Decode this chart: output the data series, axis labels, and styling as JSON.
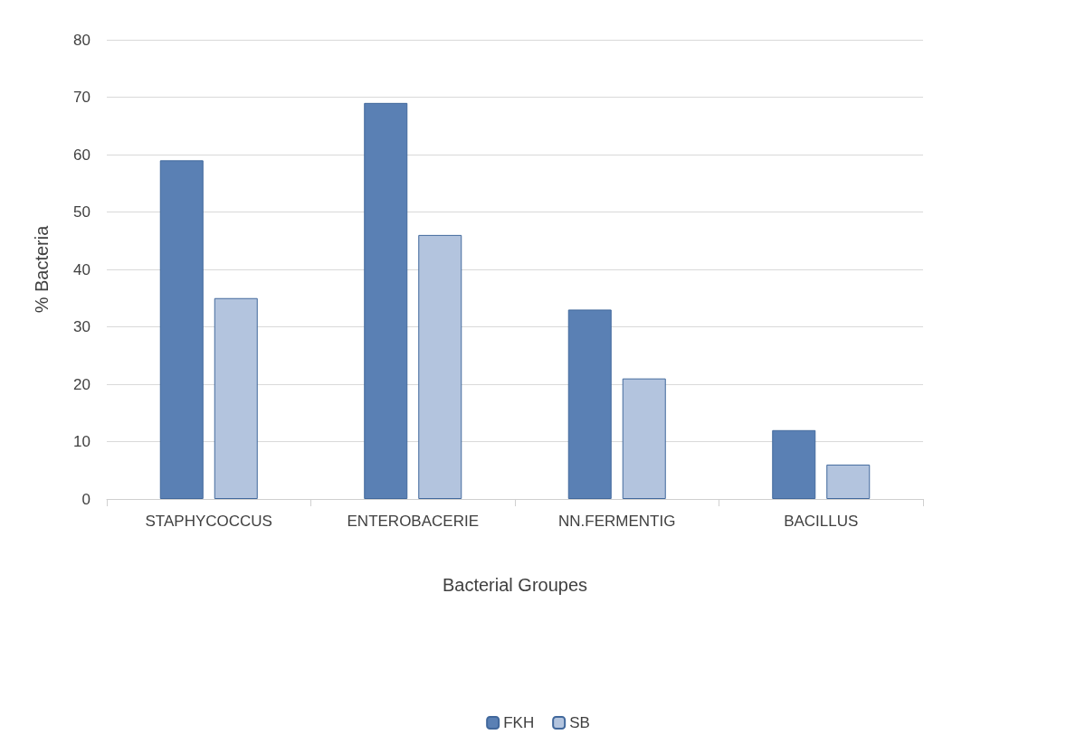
{
  "chart_data": {
    "type": "bar",
    "xlabel": "Bacterial Groupes",
    "ylabel": "% Bacteria",
    "categories": [
      "STAPHYCOCCUS",
      "ENTEROBACERIE",
      "NN.FERMENTIG",
      "BACILLUS"
    ],
    "series": [
      {
        "name": "FKH",
        "color": "#5a80b4",
        "values": [
          59,
          69,
          33,
          12
        ]
      },
      {
        "name": "SB",
        "color": "#b3c4de",
        "values": [
          35,
          46,
          21,
          6
        ]
      }
    ],
    "ylim": [
      0,
      80
    ],
    "yticks": [
      0,
      10,
      20,
      30,
      40,
      50,
      60,
      70,
      80
    ],
    "grid": "y",
    "legend": "bottom"
  }
}
